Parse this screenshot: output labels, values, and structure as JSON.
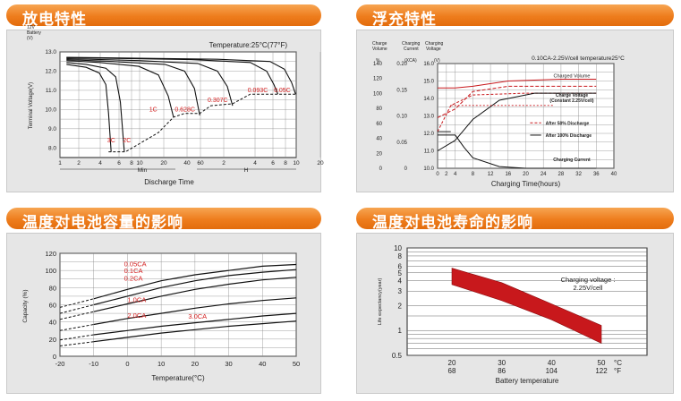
{
  "titles": {
    "discharge": "放电特性",
    "charge": "浮充特性",
    "capacity": "温度对电池容量的影响",
    "life": "温度对电池寿命的影响"
  },
  "colors": {
    "accent": "#ee7d1d",
    "red_label": "#d42020",
    "band": "#c8181c"
  },
  "chart_data": [
    {
      "id": "discharge",
      "type": "line",
      "annotation": "Temperature:25°C(77°F)",
      "y_unit_label": "12V Battery (V)",
      "ylabel": "Terminal Voltage(V)",
      "xlabel": "Discharge Time",
      "ylim": [
        7.5,
        13.0
      ],
      "yticks": [
        "13.0",
        "12.0",
        "11.0",
        "10.0",
        "9.0",
        "8.0"
      ],
      "xticks": [
        "1",
        "2",
        "4",
        "6",
        "8",
        "10",
        "20",
        "40",
        "60",
        "2",
        "4",
        "6",
        "8",
        "10",
        "20"
      ],
      "x_groups": [
        "Min",
        "H"
      ],
      "series": [
        {
          "name": "3C",
          "points": [
            [
              1,
              12.35
            ],
            [
              4,
              12.2
            ],
            [
              6,
              11.9
            ],
            [
              7,
              11.3
            ],
            [
              7.4,
              9.8
            ],
            [
              7.8,
              7.8
            ]
          ]
        },
        {
          "name": "2C",
          "points": [
            [
              1,
              12.45
            ],
            [
              4,
              12.35
            ],
            [
              7,
              12.15
            ],
            [
              8.5,
              11.7
            ],
            [
              9.2,
              10.4
            ],
            [
              9.8,
              7.8
            ]
          ]
        },
        {
          "name": "1C",
          "points": [
            [
              1,
              12.55
            ],
            [
              6,
              12.45
            ],
            [
              12,
              12.25
            ],
            [
              15,
              11.8
            ],
            [
              16.5,
              10.7
            ],
            [
              17.3,
              9.6
            ]
          ]
        },
        {
          "name": "0.628C",
          "points": [
            [
              1,
              12.6
            ],
            [
              8,
              12.5
            ],
            [
              16,
              12.35
            ],
            [
              19,
              12.0
            ],
            [
              20.5,
              11.1
            ],
            [
              21.3,
              9.7
            ]
          ]
        },
        {
          "name": "0.307C",
          "points": [
            [
              1,
              12.65
            ],
            [
              12,
              12.55
            ],
            [
              21,
              12.4
            ],
            [
              24,
              12.0
            ],
            [
              25.5,
              11.2
            ],
            [
              26.3,
              10.2
            ]
          ]
        },
        {
          "name": "0.093C",
          "points": [
            [
              1,
              12.7
            ],
            [
              20,
              12.6
            ],
            [
              29,
              12.45
            ],
            [
              31.5,
              12.0
            ],
            [
              32.6,
              11.3
            ],
            [
              33.2,
              10.8
            ]
          ]
        },
        {
          "name": "0.05C",
          "points": [
            [
              1,
              12.72
            ],
            [
              24,
              12.62
            ],
            [
              32,
              12.5
            ],
            [
              34.2,
              12.1
            ],
            [
              35.3,
              11.4
            ],
            [
              35.9,
              10.8
            ]
          ]
        }
      ],
      "cutoff_line": [
        [
          7.4,
          7.8
        ],
        [
          10,
          7.8
        ],
        [
          15,
          8.8
        ],
        [
          17.3,
          9.6
        ],
        [
          19,
          9.8
        ],
        [
          21.3,
          9.8
        ],
        [
          23,
          10.2
        ],
        [
          26.3,
          10.3
        ],
        [
          29,
          10.8
        ],
        [
          33.2,
          10.8
        ],
        [
          35.9,
          10.8
        ]
      ]
    },
    {
      "id": "charge",
      "type": "line",
      "annotation": "0.10CA-2.25V/cell   temperature25°C",
      "left_labels": {
        "col1": "Charge Volume",
        "col1_unit": "%",
        "col2": "Charging Current",
        "col2_unit": "(XCA)",
        "col3": "Charging Voltage",
        "col3_unit": "(V)"
      },
      "volume_ticks": [
        "140",
        "120",
        "100",
        "80",
        "60",
        "40",
        "20",
        "0"
      ],
      "current_ticks": [
        "0.20",
        "0.15",
        "0.10",
        "0.05",
        "0"
      ],
      "voltage_ticks": [
        "16.0",
        "15.0",
        "14.0",
        "13.0",
        "12.0",
        "11.0",
        "10.0"
      ],
      "xticks": [
        "0",
        "2",
        "4",
        "8",
        "12",
        "16",
        "20",
        "24",
        "28",
        "32",
        "36",
        "40"
      ],
      "xlabel": "Charging Time(hours)",
      "legend": [
        "Charged Volume",
        "Charge Voltage (Constant 2.25V/cell)",
        "After 50% Discharge",
        "After 100% Discharge",
        "Charging Current"
      ],
      "series": [
        {
          "name": "Charged Volume",
          "points": [
            [
              0,
              14.6
            ],
            [
              4,
              14.6
            ],
            [
              8,
              14.7
            ],
            [
              16,
              15.0
            ],
            [
              28,
              15.1
            ],
            [
              36,
              15.1
            ]
          ]
        },
        {
          "name": "Charge Voltage (Constant 2.25V/cell)",
          "points": [
            [
              0,
              12.1
            ],
            [
              3,
              13.6
            ],
            [
              8,
              14.2
            ],
            [
              20,
              14.3
            ],
            [
              36,
              14.3
            ]
          ]
        },
        {
          "name": "After 50% Discharge",
          "points": [
            [
              0,
              12.9
            ],
            [
              4,
              13.4
            ],
            [
              8,
              14.4
            ],
            [
              16,
              14.7
            ],
            [
              36,
              14.7
            ]
          ]
        },
        {
          "name": "After 100% Discharge",
          "points": [
            [
              0,
              11.0
            ],
            [
              4,
              11.6
            ],
            [
              8,
              12.8
            ],
            [
              14,
              13.9
            ],
            [
              22,
              14.3
            ],
            [
              36,
              14.3
            ]
          ]
        },
        {
          "name": "Charging Current",
          "points": [
            [
              0,
              11.9
            ],
            [
              4,
              11.9
            ],
            [
              6,
              11.2
            ],
            [
              8,
              10.6
            ],
            [
              14,
              10.1
            ],
            [
              20,
              10.0
            ],
            [
              36,
              10.0
            ]
          ]
        }
      ]
    },
    {
      "id": "capacity",
      "type": "line",
      "ylabel": "Capacity (%)",
      "xlabel": "Temperature(°C)",
      "ylim": [
        0,
        120
      ],
      "xlim": [
        -20,
        50
      ],
      "yticks": [
        "120",
        "110",
        "100",
        "90",
        "80",
        "70",
        "60",
        "50",
        "40",
        "30",
        "20",
        "10",
        "0"
      ],
      "xticks": [
        "-20",
        "-10",
        "0",
        "10",
        "20",
        "30",
        "40",
        "50"
      ],
      "series": [
        {
          "name": "0.05CA",
          "points": [
            [
              -20,
              57
            ],
            [
              -10,
              67
            ],
            [
              0,
              78
            ],
            [
              10,
              88
            ],
            [
              20,
              95
            ],
            [
              30,
              100
            ],
            [
              40,
              105
            ],
            [
              50,
              107
            ]
          ]
        },
        {
          "name": "0.1CA",
          "points": [
            [
              -20,
              50
            ],
            [
              -10,
              60
            ],
            [
              0,
              70
            ],
            [
              10,
              80
            ],
            [
              20,
              88
            ],
            [
              30,
              94
            ],
            [
              40,
              98
            ],
            [
              50,
              101
            ]
          ]
        },
        {
          "name": "0.2CA",
          "points": [
            [
              -20,
              43
            ],
            [
              -10,
              52
            ],
            [
              0,
              61
            ],
            [
              10,
              70
            ],
            [
              20,
              78
            ],
            [
              30,
              84
            ],
            [
              40,
              89
            ],
            [
              50,
              92
            ]
          ]
        },
        {
          "name": "1.0CA",
          "points": [
            [
              -20,
              30
            ],
            [
              -10,
              37
            ],
            [
              0,
              44
            ],
            [
              10,
              50
            ],
            [
              20,
              56
            ],
            [
              30,
              61
            ],
            [
              40,
              65
            ],
            [
              50,
              68
            ]
          ]
        },
        {
          "name": "2.0CA",
          "points": [
            [
              -20,
              19
            ],
            [
              -10,
              25
            ],
            [
              0,
              30
            ],
            [
              10,
              35
            ],
            [
              20,
              39
            ],
            [
              30,
              43
            ],
            [
              40,
              47
            ],
            [
              50,
              50
            ]
          ]
        },
        {
          "name": "3.0CA",
          "points": [
            [
              -20,
              12
            ],
            [
              -10,
              17
            ],
            [
              0,
              22
            ],
            [
              10,
              27
            ],
            [
              20,
              31
            ],
            [
              30,
              35
            ],
            [
              40,
              38
            ],
            [
              50,
              41
            ]
          ]
        }
      ]
    },
    {
      "id": "life",
      "type": "area",
      "ylabel": "Life expectancy(year)",
      "xlabel": "Battery temperature",
      "annotation": "Charging voltage : 2.25V/cell",
      "yscale": "log",
      "ylim": [
        0.5,
        10
      ],
      "yticks": [
        "10",
        "8",
        "6",
        "5",
        "4",
        "3",
        "2",
        "1",
        "0.5"
      ],
      "xticks_c": [
        "20",
        "30",
        "40",
        "50"
      ],
      "xticks_f": [
        "68",
        "86",
        "104",
        "122"
      ],
      "unit_c": "°C",
      "unit_f": "°F",
      "band_upper": [
        [
          20,
          5.7
        ],
        [
          30,
          3.8
        ],
        [
          40,
          2.1
        ],
        [
          50,
          1.15
        ]
      ],
      "band_lower": [
        [
          20,
          3.6
        ],
        [
          30,
          2.3
        ],
        [
          40,
          1.35
        ],
        [
          50,
          0.7
        ]
      ]
    }
  ]
}
